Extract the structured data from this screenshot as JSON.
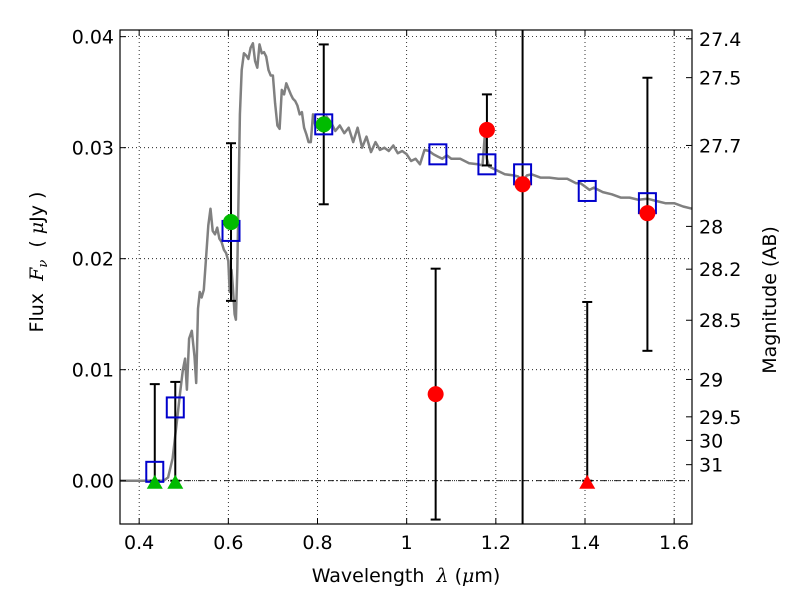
{
  "chart_data": {
    "type": "line",
    "title": "",
    "xlabel": "Wavelength  λ (μm)",
    "ylabel": "Flux  F_ν  ( μJy )",
    "ylabel_parts": {
      "prefix": "Flux  ",
      "symbol": "F",
      "subscript": "ν",
      "unit_open": "  ( ",
      "unit_mu": "μ",
      "unit_rest": "Jy )"
    },
    "xlabel_parts": {
      "prefix": "Wavelength  ",
      "symbol": "λ",
      "unit_open": " (",
      "unit_mu": "μ",
      "unit_rest": "m)"
    },
    "y2label": "Magnitude (AB)",
    "xlim": [
      0.357,
      1.64
    ],
    "ylim": [
      -0.0039,
      0.0406
    ],
    "grid": true,
    "x_ticks": [
      {
        "value": 0.4,
        "label": "0.4"
      },
      {
        "value": 0.6,
        "label": "0.6"
      },
      {
        "value": 0.8,
        "label": "0.8"
      },
      {
        "value": 1.0,
        "label": "1"
      },
      {
        "value": 1.2,
        "label": "1.2"
      },
      {
        "value": 1.4,
        "label": "1.4"
      },
      {
        "value": 1.6,
        "label": "1.6"
      }
    ],
    "y_ticks": [
      {
        "value": 0.0,
        "label": "0.00"
      },
      {
        "value": 0.01,
        "label": "0.01"
      },
      {
        "value": 0.02,
        "label": "0.02"
      },
      {
        "value": 0.03,
        "label": "0.03"
      },
      {
        "value": 0.04,
        "label": "0.04"
      }
    ],
    "y2_ticks": [
      {
        "mag": 27.4,
        "label": "27.4"
      },
      {
        "mag": 27.5,
        "label": "27.5"
      },
      {
        "mag": 27.7,
        "label": "27.7"
      },
      {
        "mag": 28.0,
        "label": "28"
      },
      {
        "mag": 28.2,
        "label": "28.2"
      },
      {
        "mag": 28.5,
        "label": "28.5"
      },
      {
        "mag": 29.0,
        "label": "29"
      },
      {
        "mag": 29.5,
        "label": "29.5"
      },
      {
        "mag": 30.0,
        "label": "30"
      },
      {
        "mag": 31.0,
        "label": "31"
      }
    ],
    "zero_line": 0.0,
    "colors": {
      "spectrum": "#808080",
      "model_photometry": "#0000cc",
      "green_detections": "#00bb00",
      "red_detections": "#ff0000",
      "errorbars": "#000000",
      "grid": "#000000"
    },
    "series": [
      {
        "name": "spectrum",
        "kind": "line",
        "x": [
          0.357,
          0.38,
          0.4,
          0.42,
          0.44,
          0.455,
          0.465,
          0.475,
          0.485,
          0.492,
          0.498,
          0.503,
          0.507,
          0.512,
          0.518,
          0.524,
          0.528,
          0.532,
          0.536,
          0.54,
          0.545,
          0.55,
          0.555,
          0.56,
          0.565,
          0.57,
          0.575,
          0.58,
          0.585,
          0.59,
          0.595,
          0.6,
          0.603,
          0.607,
          0.61,
          0.614,
          0.617,
          0.62,
          0.623,
          0.626,
          0.63,
          0.635,
          0.64,
          0.645,
          0.65,
          0.655,
          0.66,
          0.665,
          0.67,
          0.675,
          0.68,
          0.685,
          0.69,
          0.695,
          0.7,
          0.705,
          0.71,
          0.715,
          0.72,
          0.725,
          0.73,
          0.735,
          0.74,
          0.745,
          0.75,
          0.755,
          0.76,
          0.765,
          0.77,
          0.775,
          0.78,
          0.785,
          0.79,
          0.795,
          0.8,
          0.81,
          0.82,
          0.83,
          0.84,
          0.85,
          0.86,
          0.87,
          0.88,
          0.89,
          0.9,
          0.91,
          0.92,
          0.93,
          0.94,
          0.95,
          0.96,
          0.97,
          0.98,
          0.99,
          1.0,
          1.01,
          1.02,
          1.03,
          1.04,
          1.05,
          1.06,
          1.07,
          1.08,
          1.09,
          1.1,
          1.12,
          1.14,
          1.16,
          1.17,
          1.175,
          1.18,
          1.185,
          1.19,
          1.2,
          1.22,
          1.24,
          1.25,
          1.26,
          1.27,
          1.28,
          1.3,
          1.32,
          1.34,
          1.36,
          1.38,
          1.39,
          1.4,
          1.41,
          1.42,
          1.44,
          1.46,
          1.48,
          1.5,
          1.52,
          1.54,
          1.56,
          1.58,
          1.6,
          1.62,
          1.64
        ],
        "y": [
          0.0,
          0.0,
          0.0,
          0.0,
          0.0,
          0.0,
          0.0003,
          0.002,
          0.0055,
          0.008,
          0.01,
          0.011,
          0.0082,
          0.0128,
          0.0135,
          0.0112,
          0.0088,
          0.0155,
          0.017,
          0.0165,
          0.0172,
          0.02,
          0.023,
          0.0245,
          0.0225,
          0.0222,
          0.0228,
          0.0218,
          0.0215,
          0.0208,
          0.0205,
          0.0198,
          0.017,
          0.019,
          0.0175,
          0.015,
          0.0145,
          0.019,
          0.026,
          0.033,
          0.037,
          0.0385,
          0.0383,
          0.038,
          0.039,
          0.0394,
          0.0378,
          0.0372,
          0.0393,
          0.0385,
          0.0386,
          0.0382,
          0.037,
          0.0365,
          0.0365,
          0.034,
          0.032,
          0.0317,
          0.0352,
          0.0348,
          0.0358,
          0.0353,
          0.0348,
          0.0344,
          0.0342,
          0.0338,
          0.033,
          0.0332,
          0.0318,
          0.0312,
          0.0305,
          0.0305,
          0.033,
          0.032,
          0.0318,
          0.0315,
          0.0328,
          0.0323,
          0.0315,
          0.032,
          0.0313,
          0.0318,
          0.0305,
          0.0318,
          0.03,
          0.031,
          0.0296,
          0.0305,
          0.0298,
          0.03,
          0.0297,
          0.0302,
          0.0295,
          0.0297,
          0.0294,
          0.0288,
          0.029,
          0.0285,
          0.0298,
          0.0297,
          0.0294,
          0.0292,
          0.029,
          0.0293,
          0.029,
          0.029,
          0.0286,
          0.0285,
          0.0284,
          0.031,
          0.029,
          0.0283,
          0.0282,
          0.028,
          0.0276,
          0.0275,
          0.0274,
          0.027,
          0.0275,
          0.0276,
          0.0273,
          0.0273,
          0.0272,
          0.0272,
          0.0268,
          0.0268,
          0.0265,
          0.0262,
          0.0264,
          0.026,
          0.0258,
          0.0255,
          0.0255,
          0.0253,
          0.0254,
          0.0252,
          0.025,
          0.025,
          0.0247,
          0.0245
        ]
      },
      {
        "name": "model-photometry",
        "kind": "open-square",
        "points": [
          {
            "x": 0.435,
            "y": 0.0008
          },
          {
            "x": 0.481,
            "y": 0.0066
          },
          {
            "x": 0.606,
            "y": 0.0225
          },
          {
            "x": 0.814,
            "y": 0.0321
          },
          {
            "x": 1.07,
            "y": 0.0294
          },
          {
            "x": 1.18,
            "y": 0.0285
          },
          {
            "x": 1.26,
            "y": 0.0276
          },
          {
            "x": 1.405,
            "y": 0.0261
          },
          {
            "x": 1.54,
            "y": 0.025
          }
        ]
      },
      {
        "name": "green-detections",
        "kind": "circle",
        "points": [
          {
            "x": 0.606,
            "y": 0.0233,
            "ylow": 0.0162,
            "yhigh": 0.0304
          },
          {
            "x": 0.814,
            "y": 0.0321,
            "ylow": 0.0249,
            "yhigh": 0.0393
          }
        ]
      },
      {
        "name": "green-upper-limits",
        "kind": "triangle",
        "points": [
          {
            "x": 0.435,
            "y": 0.0,
            "ylow": 0.0,
            "yhigh": 0.0087
          },
          {
            "x": 0.481,
            "y": 0.0,
            "ylow": 0.0,
            "yhigh": 0.0089
          }
        ]
      },
      {
        "name": "red-detections",
        "kind": "circle",
        "points": [
          {
            "x": 1.065,
            "y": 0.0078,
            "ylow": -0.0035,
            "yhigh": 0.0191
          },
          {
            "x": 1.18,
            "y": 0.0316,
            "ylow": 0.0284,
            "yhigh": 0.0348
          },
          {
            "x": 1.26,
            "y": 0.0267,
            "ylow": -0.01,
            "yhigh": 0.06
          },
          {
            "x": 1.54,
            "y": 0.0241,
            "ylow": 0.0117,
            "yhigh": 0.0363
          }
        ]
      },
      {
        "name": "red-upper-limits",
        "kind": "triangle",
        "points": [
          {
            "x": 1.405,
            "y": 0.0,
            "ylow": 0.0,
            "yhigh": 0.0161
          }
        ]
      }
    ]
  }
}
